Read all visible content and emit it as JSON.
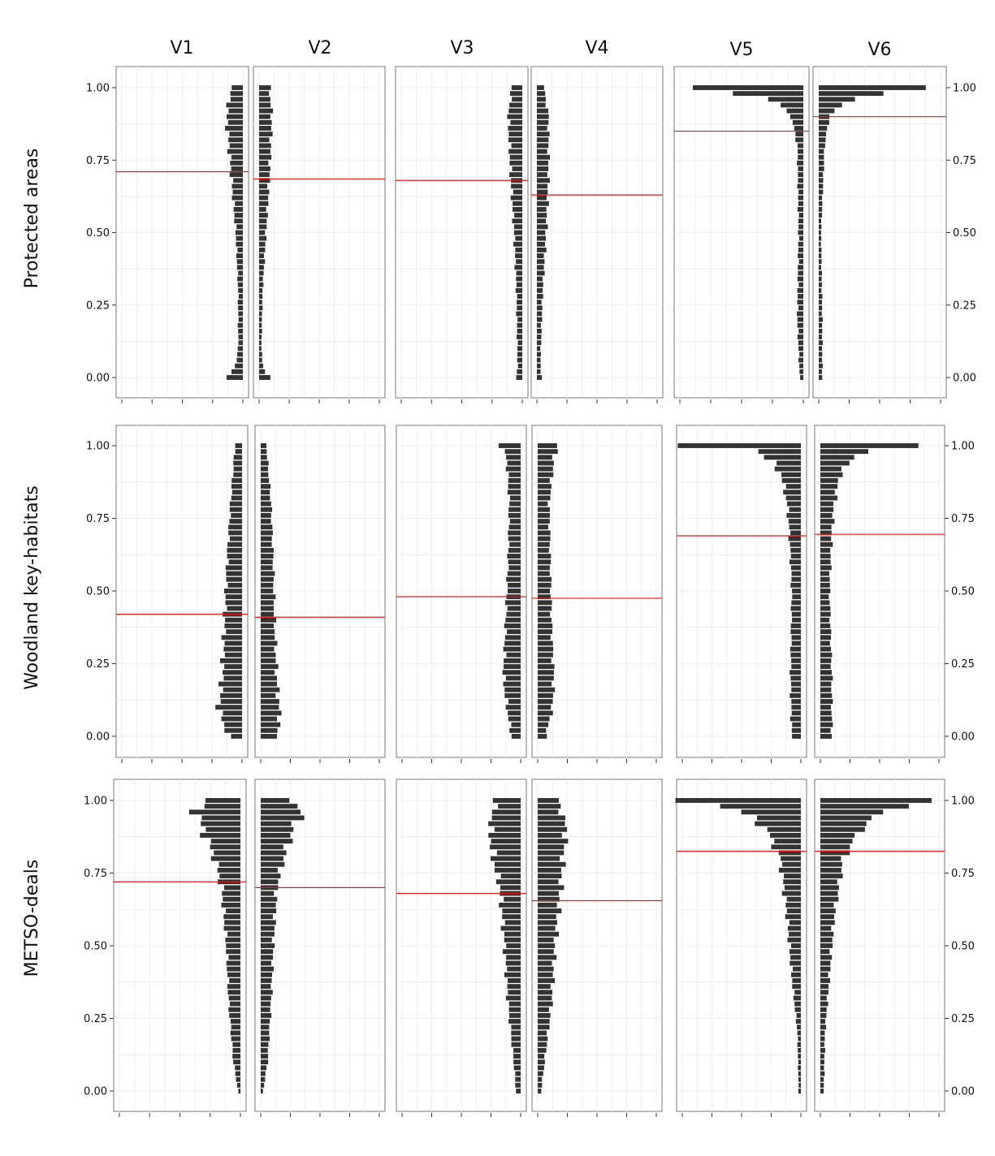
{
  "chart_data": {
    "type": "bar",
    "orientation": "horizontal",
    "grid": true,
    "columns": [
      "V1",
      "V2",
      "V3",
      "V4",
      "V5",
      "V6"
    ],
    "rows": [
      "Protected areas",
      "Woodland key-habitats",
      "METSO-deals"
    ],
    "y_ticks": [
      "0.00",
      "0.25",
      "0.50",
      "0.75",
      "1.00"
    ],
    "ylim": [
      -0.07,
      1.07
    ],
    "bin_count": 51,
    "colors": {
      "bar": "#333333",
      "reference_line": "#e31a1c",
      "grid": "#ebebeb"
    },
    "panels": [
      {
        "row": "Protected areas",
        "col": "V1",
        "anchor": "right",
        "xlim": [
          0,
          1
        ],
        "reference_y": 0.71,
        "profile": [
          [
            0,
            0.14
          ],
          [
            0.02,
            0.09
          ],
          [
            0.05,
            0.06
          ],
          [
            0.1,
            0.04
          ],
          [
            0.3,
            0.04
          ],
          [
            0.5,
            0.06
          ],
          [
            0.7,
            0.1
          ],
          [
            0.9,
            0.14
          ],
          [
            1,
            0.1
          ]
        ]
      },
      {
        "row": "Protected areas",
        "col": "V2",
        "anchor": "left",
        "xlim": [
          0,
          1
        ],
        "reference_y": 0.685,
        "profile": [
          [
            0,
            0.09
          ],
          [
            0.02,
            0.05
          ],
          [
            0.05,
            0.03
          ],
          [
            0.1,
            0.02
          ],
          [
            0.3,
            0.03
          ],
          [
            0.5,
            0.06
          ],
          [
            0.7,
            0.09
          ],
          [
            0.9,
            0.11
          ],
          [
            1,
            0.09
          ]
        ]
      },
      {
        "row": "Protected areas",
        "col": "V3",
        "anchor": "right",
        "xlim": [
          0,
          1
        ],
        "reference_y": 0.68,
        "profile": [
          [
            0,
            0.05
          ],
          [
            0.05,
            0.04
          ],
          [
            0.3,
            0.05
          ],
          [
            0.5,
            0.07
          ],
          [
            0.7,
            0.1
          ],
          [
            0.9,
            0.12
          ],
          [
            1,
            0.09
          ]
        ]
      },
      {
        "row": "Protected areas",
        "col": "V4",
        "anchor": "left",
        "xlim": [
          0,
          1
        ],
        "reference_y": 0.63,
        "profile": [
          [
            0,
            0.04
          ],
          [
            0.05,
            0.03
          ],
          [
            0.3,
            0.05
          ],
          [
            0.5,
            0.08
          ],
          [
            0.7,
            0.1
          ],
          [
            0.9,
            0.1
          ],
          [
            1,
            0.06
          ]
        ]
      },
      {
        "row": "Protected areas",
        "col": "V5",
        "anchor": "right",
        "xlim": [
          0,
          1
        ],
        "reference_y": 0.85,
        "profile": [
          [
            0,
            0.03
          ],
          [
            0.2,
            0.05
          ],
          [
            0.5,
            0.04
          ],
          [
            0.8,
            0.05
          ],
          [
            0.9,
            0.1
          ],
          [
            0.94,
            0.2
          ],
          [
            0.97,
            0.33
          ],
          [
            1,
            1
          ]
        ]
      },
      {
        "row": "Protected areas",
        "col": "V6",
        "anchor": "left",
        "xlim": [
          0,
          1
        ],
        "reference_y": 0.9,
        "profile": [
          [
            0,
            0.03
          ],
          [
            0.2,
            0.03
          ],
          [
            0.5,
            0.02
          ],
          [
            0.8,
            0.05
          ],
          [
            0.9,
            0.09
          ],
          [
            0.94,
            0.2
          ],
          [
            0.97,
            0.33
          ],
          [
            1,
            1
          ]
        ]
      },
      {
        "row": "Woodland key-habitats",
        "col": "V1",
        "anchor": "right",
        "xlim": [
          0,
          1
        ],
        "reference_y": 0.42,
        "profile": [
          [
            0,
            0.11
          ],
          [
            0.05,
            0.17
          ],
          [
            0.1,
            0.2
          ],
          [
            0.2,
            0.17
          ],
          [
            0.4,
            0.15
          ],
          [
            0.6,
            0.13
          ],
          [
            0.8,
            0.1
          ],
          [
            1,
            0.06
          ]
        ]
      },
      {
        "row": "Woodland key-habitats",
        "col": "V2",
        "anchor": "left",
        "xlim": [
          0,
          1
        ],
        "reference_y": 0.41,
        "profile": [
          [
            0,
            0.13
          ],
          [
            0.05,
            0.17
          ],
          [
            0.2,
            0.14
          ],
          [
            0.4,
            0.12
          ],
          [
            0.6,
            0.11
          ],
          [
            0.8,
            0.09
          ],
          [
            1,
            0.05
          ]
        ]
      },
      {
        "row": "Woodland key-habitats",
        "col": "V3",
        "anchor": "right",
        "xlim": [
          0,
          1
        ],
        "reference_y": 0.48,
        "profile": [
          [
            0,
            0.08
          ],
          [
            0.1,
            0.12
          ],
          [
            0.2,
            0.15
          ],
          [
            0.4,
            0.13
          ],
          [
            0.6,
            0.11
          ],
          [
            0.8,
            0.1
          ],
          [
            0.95,
            0.12
          ],
          [
            1,
            0.17
          ]
        ]
      },
      {
        "row": "Woodland key-habitats",
        "col": "V4",
        "anchor": "left",
        "xlim": [
          0,
          1
        ],
        "reference_y": 0.475,
        "profile": [
          [
            0,
            0.07
          ],
          [
            0.1,
            0.13
          ],
          [
            0.2,
            0.14
          ],
          [
            0.4,
            0.12
          ],
          [
            0.6,
            0.11
          ],
          [
            0.8,
            0.1
          ],
          [
            0.95,
            0.14
          ],
          [
            1,
            0.17
          ]
        ]
      },
      {
        "row": "Woodland key-habitats",
        "col": "V5",
        "anchor": "right",
        "xlim": [
          0,
          1
        ],
        "reference_y": 0.69,
        "profile": [
          [
            0,
            0.08
          ],
          [
            0.2,
            0.09
          ],
          [
            0.5,
            0.08
          ],
          [
            0.7,
            0.1
          ],
          [
            0.8,
            0.12
          ],
          [
            0.9,
            0.17
          ],
          [
            0.95,
            0.27
          ],
          [
            0.98,
            0.37
          ],
          [
            1,
            1
          ]
        ]
      },
      {
        "row": "Woodland key-habitats",
        "col": "V6",
        "anchor": "left",
        "xlim": [
          0,
          1
        ],
        "reference_y": 0.695,
        "profile": [
          [
            0,
            0.1
          ],
          [
            0.2,
            0.1
          ],
          [
            0.5,
            0.08
          ],
          [
            0.7,
            0.1
          ],
          [
            0.8,
            0.12
          ],
          [
            0.9,
            0.17
          ],
          [
            0.95,
            0.27
          ],
          [
            0.98,
            0.37
          ],
          [
            1,
            1
          ]
        ]
      },
      {
        "row": "METSO-deals",
        "col": "V1",
        "anchor": "right",
        "xlim": [
          0,
          1
        ],
        "reference_y": 0.72,
        "profile": [
          [
            0,
            0.02
          ],
          [
            0.1,
            0.06
          ],
          [
            0.3,
            0.1
          ],
          [
            0.5,
            0.12
          ],
          [
            0.7,
            0.16
          ],
          [
            0.8,
            0.22
          ],
          [
            0.9,
            0.32
          ],
          [
            0.96,
            0.38
          ],
          [
            1,
            0.3
          ]
        ]
      },
      {
        "row": "METSO-deals",
        "col": "V2",
        "anchor": "left",
        "xlim": [
          0,
          1
        ],
        "reference_y": 0.7,
        "profile": [
          [
            0,
            0.02
          ],
          [
            0.1,
            0.06
          ],
          [
            0.3,
            0.09
          ],
          [
            0.5,
            0.11
          ],
          [
            0.7,
            0.14
          ],
          [
            0.8,
            0.2
          ],
          [
            0.9,
            0.28
          ],
          [
            0.96,
            0.36
          ],
          [
            1,
            0.28
          ]
        ]
      },
      {
        "row": "METSO-deals",
        "col": "V3",
        "anchor": "right",
        "xlim": [
          0,
          1
        ],
        "reference_y": 0.68,
        "profile": [
          [
            0,
            0.04
          ],
          [
            0.1,
            0.06
          ],
          [
            0.3,
            0.11
          ],
          [
            0.5,
            0.14
          ],
          [
            0.7,
            0.18
          ],
          [
            0.8,
            0.24
          ],
          [
            0.9,
            0.27
          ],
          [
            1,
            0.22
          ]
        ]
      },
      {
        "row": "METSO-deals",
        "col": "V4",
        "anchor": "left",
        "xlim": [
          0,
          1
        ],
        "reference_y": 0.655,
        "profile": [
          [
            0,
            0.03
          ],
          [
            0.1,
            0.06
          ],
          [
            0.3,
            0.12
          ],
          [
            0.5,
            0.15
          ],
          [
            0.7,
            0.2
          ],
          [
            0.8,
            0.22
          ],
          [
            0.9,
            0.25
          ],
          [
            1,
            0.18
          ]
        ]
      },
      {
        "row": "METSO-deals",
        "col": "V5",
        "anchor": "right",
        "xlim": [
          0,
          1
        ],
        "reference_y": 0.825,
        "profile": [
          [
            0,
            0.02
          ],
          [
            0.2,
            0.03
          ],
          [
            0.4,
            0.08
          ],
          [
            0.6,
            0.12
          ],
          [
            0.8,
            0.18
          ],
          [
            0.9,
            0.3
          ],
          [
            0.95,
            0.45
          ],
          [
            0.98,
            0.7
          ],
          [
            1,
            1
          ]
        ]
      },
      {
        "row": "METSO-deals",
        "col": "V6",
        "anchor": "left",
        "xlim": [
          0,
          1
        ],
        "reference_y": 0.825,
        "profile": [
          [
            0,
            0.03
          ],
          [
            0.2,
            0.04
          ],
          [
            0.4,
            0.08
          ],
          [
            0.6,
            0.12
          ],
          [
            0.8,
            0.2
          ],
          [
            0.9,
            0.35
          ],
          [
            0.95,
            0.5
          ],
          [
            0.98,
            0.7
          ],
          [
            1,
            1
          ]
        ]
      }
    ]
  }
}
